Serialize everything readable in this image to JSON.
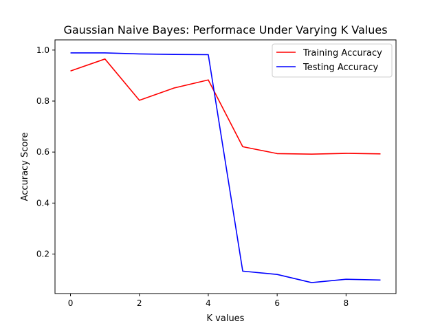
{
  "chart_data": {
    "type": "line",
    "title": "Gaussian Naive Bayes: Performace Under Varying K Values",
    "xlabel": "K values",
    "ylabel": "Accuracy Score",
    "x": [
      0,
      1,
      2,
      3,
      4,
      5,
      6,
      7,
      8,
      9
    ],
    "xlim": [
      -0.45,
      9.45
    ],
    "ylim": [
      0.045,
      1.04
    ],
    "xticks": [
      0,
      2,
      4,
      6,
      8
    ],
    "yticks": [
      0.2,
      0.4,
      0.6,
      0.8,
      1.0
    ],
    "xtick_labels": [
      "0",
      "2",
      "4",
      "6",
      "8"
    ],
    "ytick_labels": [
      "0.2",
      "0.4",
      "0.6",
      "0.8",
      "1.0"
    ],
    "grid": false,
    "legend_position": "top-right",
    "series": [
      {
        "name": "Training Accuracy",
        "color": "#ff0000",
        "values": [
          0.918,
          0.965,
          0.803,
          0.851,
          0.883,
          0.621,
          0.594,
          0.592,
          0.595,
          0.593
        ]
      },
      {
        "name": "Testing Accuracy",
        "color": "#0000ff",
        "values": [
          0.989,
          0.989,
          0.985,
          0.983,
          0.982,
          0.133,
          0.12,
          0.088,
          0.101,
          0.098
        ]
      }
    ]
  }
}
